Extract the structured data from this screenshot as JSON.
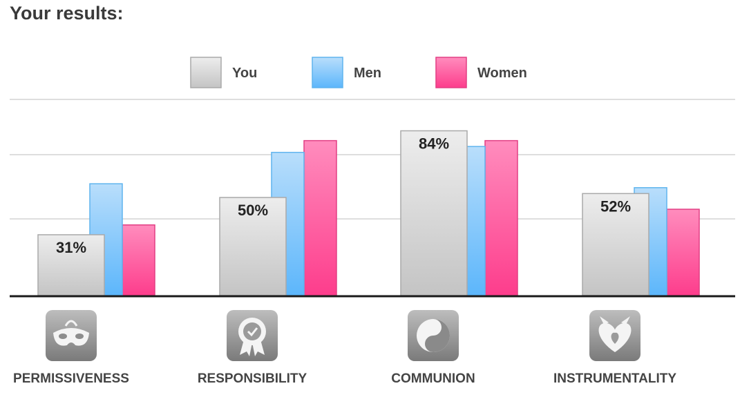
{
  "header": {
    "title": "Your results:"
  },
  "chart_data": {
    "type": "bar",
    "categories": [
      "PERMISSIVENESS",
      "RESPONSIBILITY",
      "COMMUNION",
      "INSTRUMENTALITY"
    ],
    "icons": [
      "mask-icon",
      "badge-icon",
      "yin-yang-icon",
      "devil-heart-icon"
    ],
    "series": [
      {
        "name": "You",
        "values": [
          31,
          50,
          84,
          52
        ],
        "color": "#e0e0e0",
        "labels": [
          "31%",
          "50%",
          "84%",
          "52%"
        ]
      },
      {
        "name": "Men",
        "values": [
          57,
          73,
          76,
          55
        ],
        "color": "#7cc4fa"
      },
      {
        "name": "Women",
        "values": [
          36,
          79,
          79,
          44
        ],
        "color": "#fd5b9d"
      }
    ],
    "ylim": [
      0,
      100
    ],
    "grid": true,
    "legend": "top-center"
  }
}
